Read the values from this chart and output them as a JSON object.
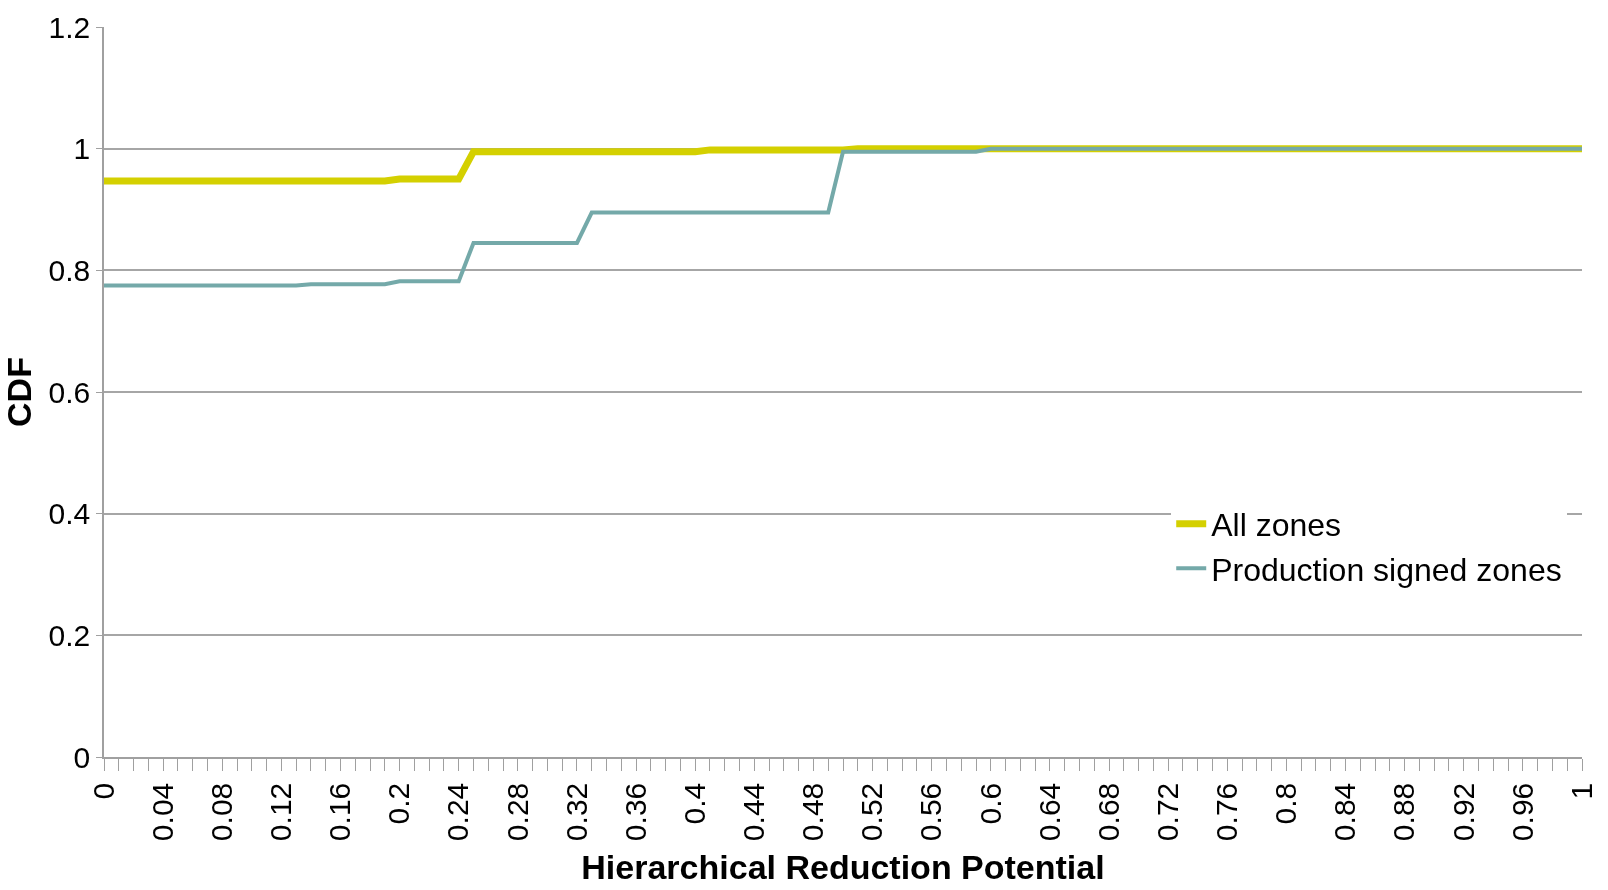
{
  "chart_data": {
    "type": "line",
    "xlabel": "Hierarchical Reduction Potential",
    "ylabel": "CDF",
    "series": [
      {
        "name": "All zones",
        "color": "#d4d000",
        "x": [
          0,
          0.19,
          0.2,
          0.24,
          0.25,
          0.4,
          0.41,
          0.5,
          0.51,
          1
        ],
        "values": [
          0.947,
          0.947,
          0.95,
          0.95,
          0.995,
          0.995,
          0.998,
          0.998,
          1,
          1
        ]
      },
      {
        "name": "Production signed zones",
        "color": "#74a9a9",
        "x": [
          0,
          0.13,
          0.14,
          0.19,
          0.2,
          0.24,
          0.25,
          0.32,
          0.33,
          0.49,
          0.5,
          0.59,
          0.6,
          1
        ],
        "values": [
          0.775,
          0.775,
          0.777,
          0.777,
          0.782,
          0.782,
          0.845,
          0.845,
          0.895,
          0.895,
          0.995,
          0.995,
          1,
          1
        ]
      }
    ],
    "xlim": [
      0,
      1
    ],
    "ylim": [
      0,
      1.2
    ],
    "yticks": [
      0,
      0.2,
      0.4,
      0.6,
      0.8,
      1,
      1.2
    ],
    "xticks": [
      0,
      {
        "value": 0.01,
        "label": null
      },
      {
        "value": 0.02,
        "label": null
      },
      {
        "value": 0.03,
        "label": null
      },
      0.04,
      {
        "value": 0.05,
        "label": null
      },
      {
        "value": 0.06,
        "label": null
      },
      {
        "value": 0.07,
        "label": null
      },
      0.08,
      {
        "value": 0.09,
        "label": null
      },
      {
        "value": 0.1,
        "label": null
      },
      {
        "value": 0.11,
        "label": null
      },
      0.12,
      {
        "value": 0.13,
        "label": null
      },
      {
        "value": 0.14,
        "label": null
      },
      {
        "value": 0.15,
        "label": null
      },
      0.16,
      {
        "value": 0.17,
        "label": null
      },
      {
        "value": 0.18,
        "label": null
      },
      {
        "value": 0.19,
        "label": null
      },
      0.2,
      {
        "value": 0.21,
        "label": null
      },
      {
        "value": 0.22,
        "label": null
      },
      {
        "value": 0.23,
        "label": null
      },
      0.24,
      {
        "value": 0.25,
        "label": null
      },
      {
        "value": 0.26,
        "label": null
      },
      {
        "value": 0.27,
        "label": null
      },
      0.28,
      {
        "value": 0.29,
        "label": null
      },
      {
        "value": 0.3,
        "label": null
      },
      {
        "value": 0.31,
        "label": null
      },
      0.32,
      {
        "value": 0.33,
        "label": null
      },
      {
        "value": 0.34,
        "label": null
      },
      {
        "value": 0.35,
        "label": null
      },
      0.36,
      {
        "value": 0.37,
        "label": null
      },
      {
        "value": 0.38,
        "label": null
      },
      {
        "value": 0.39,
        "label": null
      },
      0.4,
      {
        "value": 0.41,
        "label": null
      },
      {
        "value": 0.42,
        "label": null
      },
      {
        "value": 0.43,
        "label": null
      },
      0.44,
      {
        "value": 0.45,
        "label": null
      },
      {
        "value": 0.46,
        "label": null
      },
      {
        "value": 0.47,
        "label": null
      },
      0.48,
      {
        "value": 0.49,
        "label": null
      },
      {
        "value": 0.5,
        "label": null
      },
      {
        "value": 0.51,
        "label": null
      },
      0.52,
      {
        "value": 0.53,
        "label": null
      },
      {
        "value": 0.54,
        "label": null
      },
      {
        "value": 0.55,
        "label": null
      },
      0.56,
      {
        "value": 0.57,
        "label": null
      },
      {
        "value": 0.58,
        "label": null
      },
      {
        "value": 0.59,
        "label": null
      },
      0.6,
      {
        "value": 0.61,
        "label": null
      },
      {
        "value": 0.62,
        "label": null
      },
      {
        "value": 0.63,
        "label": null
      },
      0.64,
      {
        "value": 0.65,
        "label": null
      },
      {
        "value": 0.66,
        "label": null
      },
      {
        "value": 0.67,
        "label": null
      },
      0.68,
      {
        "value": 0.69,
        "label": null
      },
      {
        "value": 0.7,
        "label": null
      },
      {
        "value": 0.71,
        "label": null
      },
      0.72,
      {
        "value": 0.73,
        "label": null
      },
      {
        "value": 0.74,
        "label": null
      },
      {
        "value": 0.75,
        "label": null
      },
      0.76,
      {
        "value": 0.77,
        "label": null
      },
      {
        "value": 0.78,
        "label": null
      },
      {
        "value": 0.79,
        "label": null
      },
      0.8,
      {
        "value": 0.81,
        "label": null
      },
      {
        "value": 0.82,
        "label": null
      },
      {
        "value": 0.83,
        "label": null
      },
      0.84,
      {
        "value": 0.85,
        "label": null
      },
      {
        "value": 0.86,
        "label": null
      },
      {
        "value": 0.87,
        "label": null
      },
      0.88,
      {
        "value": 0.89,
        "label": null
      },
      {
        "value": 0.9,
        "label": null
      },
      {
        "value": 0.91,
        "label": null
      },
      0.92,
      {
        "value": 0.93,
        "label": null
      },
      {
        "value": 0.94,
        "label": null
      },
      {
        "value": 0.95,
        "label": null
      },
      0.96,
      {
        "value": 0.97,
        "label": null
      },
      {
        "value": 0.98,
        "label": null
      },
      {
        "value": 0.99,
        "label": null
      },
      1
    ],
    "grid": "y",
    "legend": "bottom right",
    "marker": "none",
    "line_style": "solid"
  }
}
